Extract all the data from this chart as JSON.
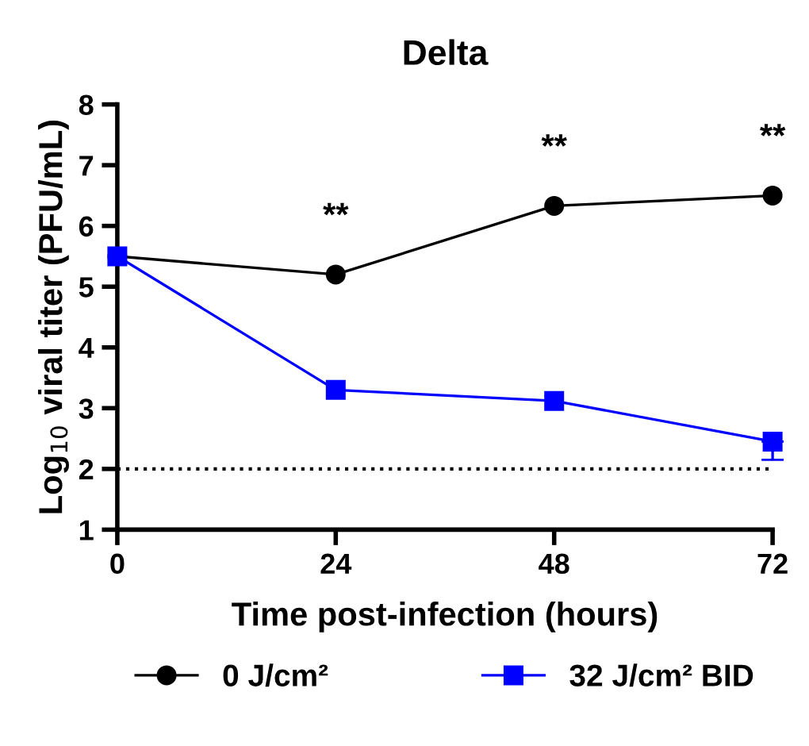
{
  "chart_data": {
    "type": "line",
    "title": "Delta",
    "xlabel": "Time post-infection (hours)",
    "ylabel": "Log$_{10}$ viral titer (PFU/mL)",
    "x": [
      0,
      24,
      48,
      72
    ],
    "series": [
      {
        "name": "0 J/cm²",
        "color": "#000000",
        "marker": "circle",
        "values": [
          5.5,
          5.2,
          6.33,
          6.5
        ]
      },
      {
        "name": "32 J/cm² BID",
        "color": "#0000ff",
        "marker": "square",
        "values": [
          5.5,
          3.3,
          3.12,
          2.45
        ],
        "errors": [
          null,
          null,
          null,
          [
            2.15,
            2.45
          ]
        ]
      }
    ],
    "xlim": [
      0,
      72
    ],
    "xticks": [
      0,
      24,
      48,
      72
    ],
    "ylim": [
      1,
      8
    ],
    "yticks": [
      1,
      2,
      3,
      4,
      5,
      6,
      7,
      8
    ],
    "ref_lines": [
      {
        "axis": "y",
        "value": 2,
        "line_style": "dotted",
        "color": "#000000"
      }
    ],
    "annotations": [
      "**",
      "**",
      "**"
    ],
    "grid": false,
    "legend": "bottom",
    "line_style": "solid"
  }
}
